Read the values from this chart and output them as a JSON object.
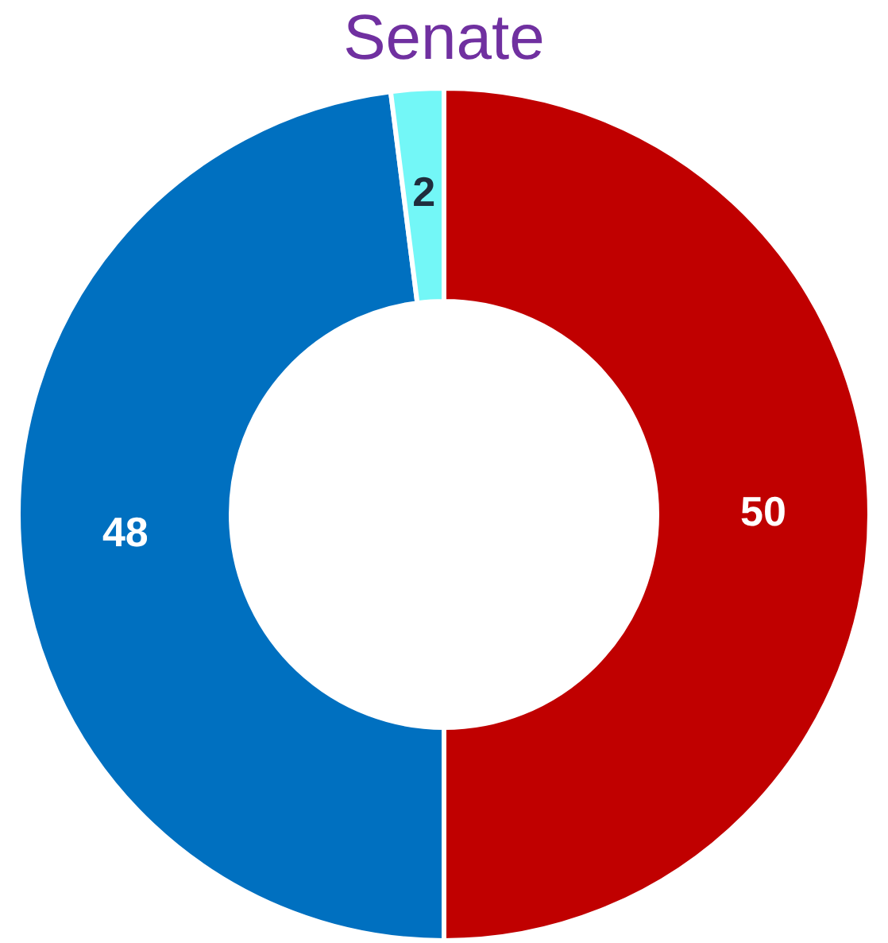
{
  "chart_data": {
    "type": "donut",
    "title": "Senate",
    "categories": [
      null,
      null,
      null
    ],
    "values": [
      50,
      48,
      2
    ],
    "colors": [
      "#c00000",
      "#0070c0",
      "#73f7f7"
    ],
    "data_labels": true,
    "legend": false
  }
}
